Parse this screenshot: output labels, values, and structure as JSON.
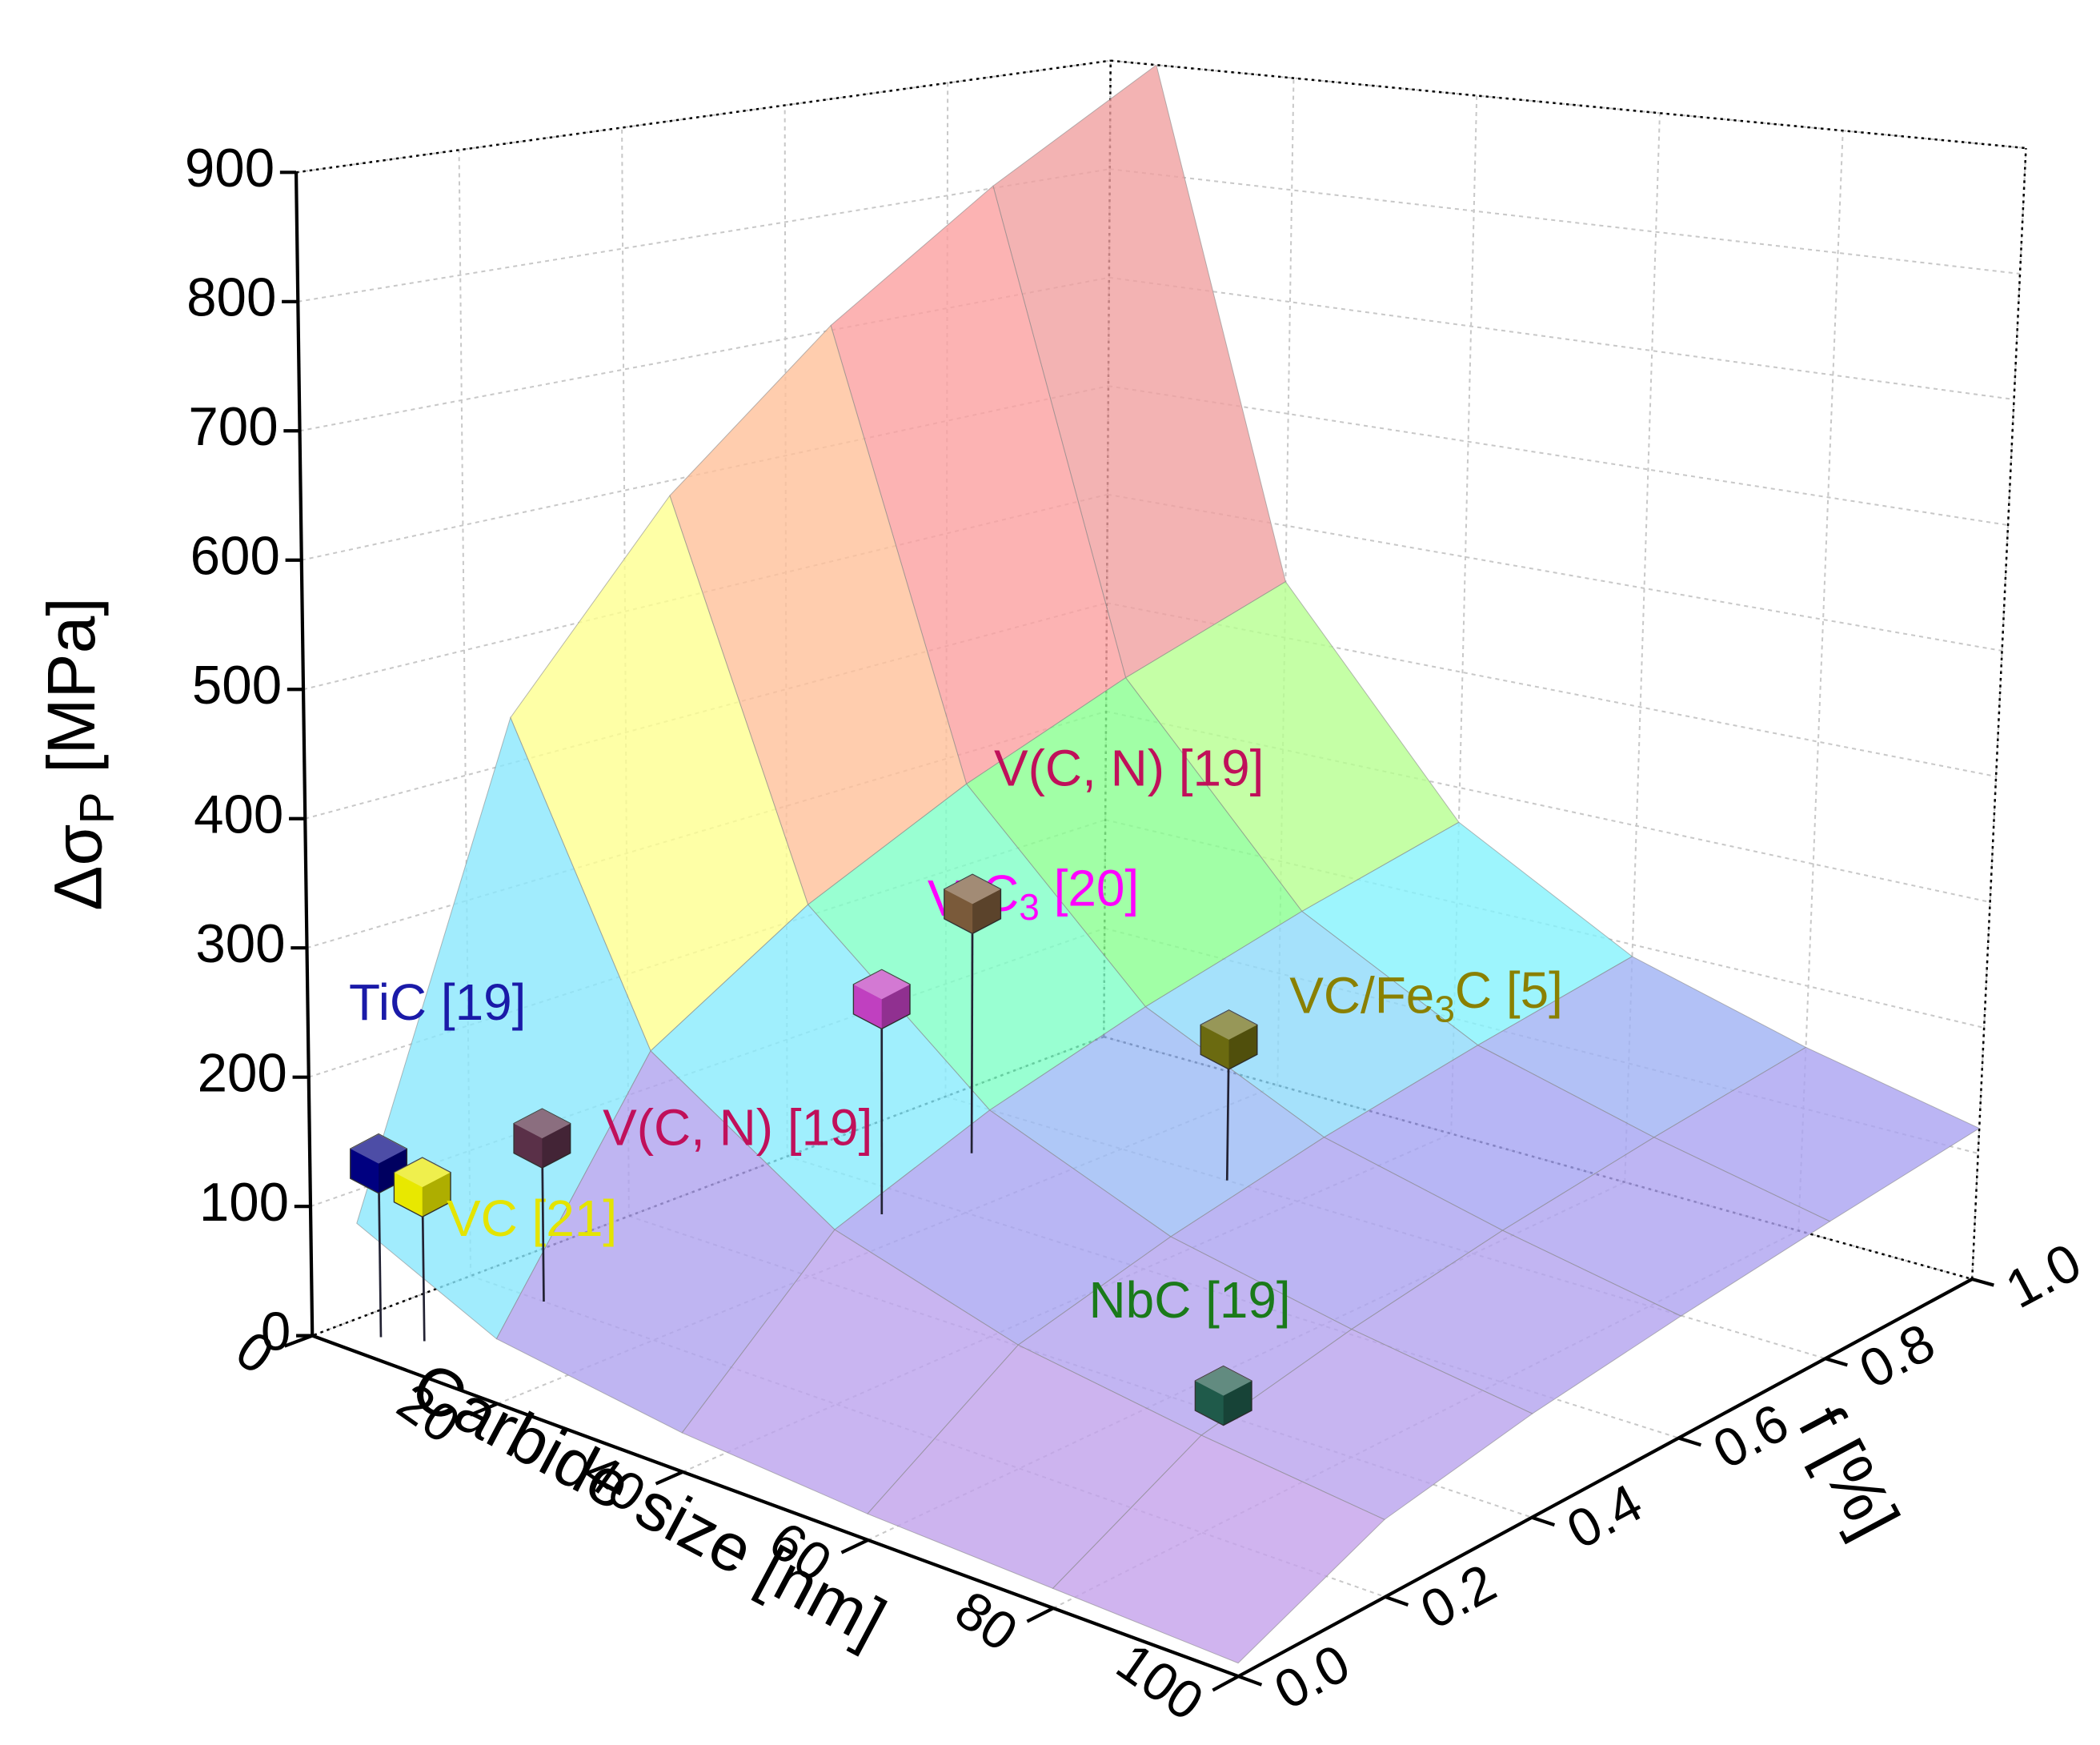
{
  "chart_data": {
    "type": "surface3d",
    "xlabel": "Carbide size [nm]",
    "ylabel": "f [%]",
    "zlabel": [
      "Δσ",
      "P",
      " [MPa]"
    ],
    "xlim": [
      0,
      100
    ],
    "xticks": [
      0,
      20,
      40,
      60,
      80,
      100
    ],
    "ylim": [
      0,
      1
    ],
    "yticks": [
      {
        "value": 0,
        "label": "0.0"
      },
      0.2,
      0.4,
      0.6,
      0.8,
      {
        "value": 1,
        "label": "1.0"
      }
    ],
    "zlim": [
      0,
      900
    ],
    "zticks": [
      0,
      100,
      200,
      300,
      400,
      500,
      600,
      700,
      800,
      900
    ],
    "grid": true,
    "surface": {
      "x": [
        5,
        20,
        40,
        60,
        80,
        100
      ],
      "y": [
        0,
        0.2,
        0.4,
        0.6,
        0.8,
        1
      ],
      "z": [
        [
          100,
          458,
          606,
          720,
          815,
          900
        ],
        [
          50,
          229,
          303,
          360,
          408,
          450
        ],
        [
          30,
          137,
          182,
          216,
          245,
          270
        ],
        [
          20,
          96,
          127,
          152,
          172,
          190
        ],
        [
          15,
          75,
          100,
          120,
          136,
          150
        ],
        [
          10,
          59,
          80,
          95,
          108,
          120
        ]
      ],
      "colorscale": [
        [
          0,
          "#d0a0e8"
        ],
        [
          150,
          "#a4a4f2"
        ],
        [
          230,
          "#80ffff"
        ],
        [
          300,
          "#80ff90"
        ],
        [
          400,
          "#ffff90"
        ],
        [
          550,
          "#ffa0a0"
        ],
        [
          900,
          "#c8a0a0"
        ]
      ],
      "opacity": 0.8
    },
    "points": [
      {
        "label": [
          "TiC [19]"
        ],
        "color": "#000080",
        "label_color": "#1a1aa8",
        "x": 4,
        "y": 0.04,
        "z": 135
      },
      {
        "label": [
          "VC [21]"
        ],
        "color": "#e8e800",
        "label_color": "#e4e400",
        "x": 7,
        "y": 0.06,
        "z": 120
      },
      {
        "label": [
          "V(C, N) [19]"
        ],
        "color": "#5a3048",
        "label_color": "#c0105a",
        "x": 8,
        "y": 0.2,
        "z": 130
      },
      {
        "label": [
          "V",
          "4",
          "C",
          "3",
          " [20]"
        ],
        "color": "#c040c0",
        "label_color": "#ff00ff",
        "x": 15,
        "y": 0.55,
        "z": 180
      },
      {
        "label": [
          "V(C, N) [19]"
        ],
        "color": "#7a5a3a",
        "label_color": "#c0105a",
        "x": 11,
        "y": 0.71,
        "z": 215
      },
      {
        "label": [
          "VC/Fe",
          "3",
          "C [5]"
        ],
        "color": "#6b6a10",
        "label_color": "#8a8000",
        "x": 32,
        "y": 0.8,
        "z": 120
      },
      {
        "label": [
          "NbC [19]"
        ],
        "color": "#1f5a4a",
        "label_color": "#1a7a1a",
        "x": 65,
        "y": 0.41,
        "z": 10
      }
    ]
  }
}
